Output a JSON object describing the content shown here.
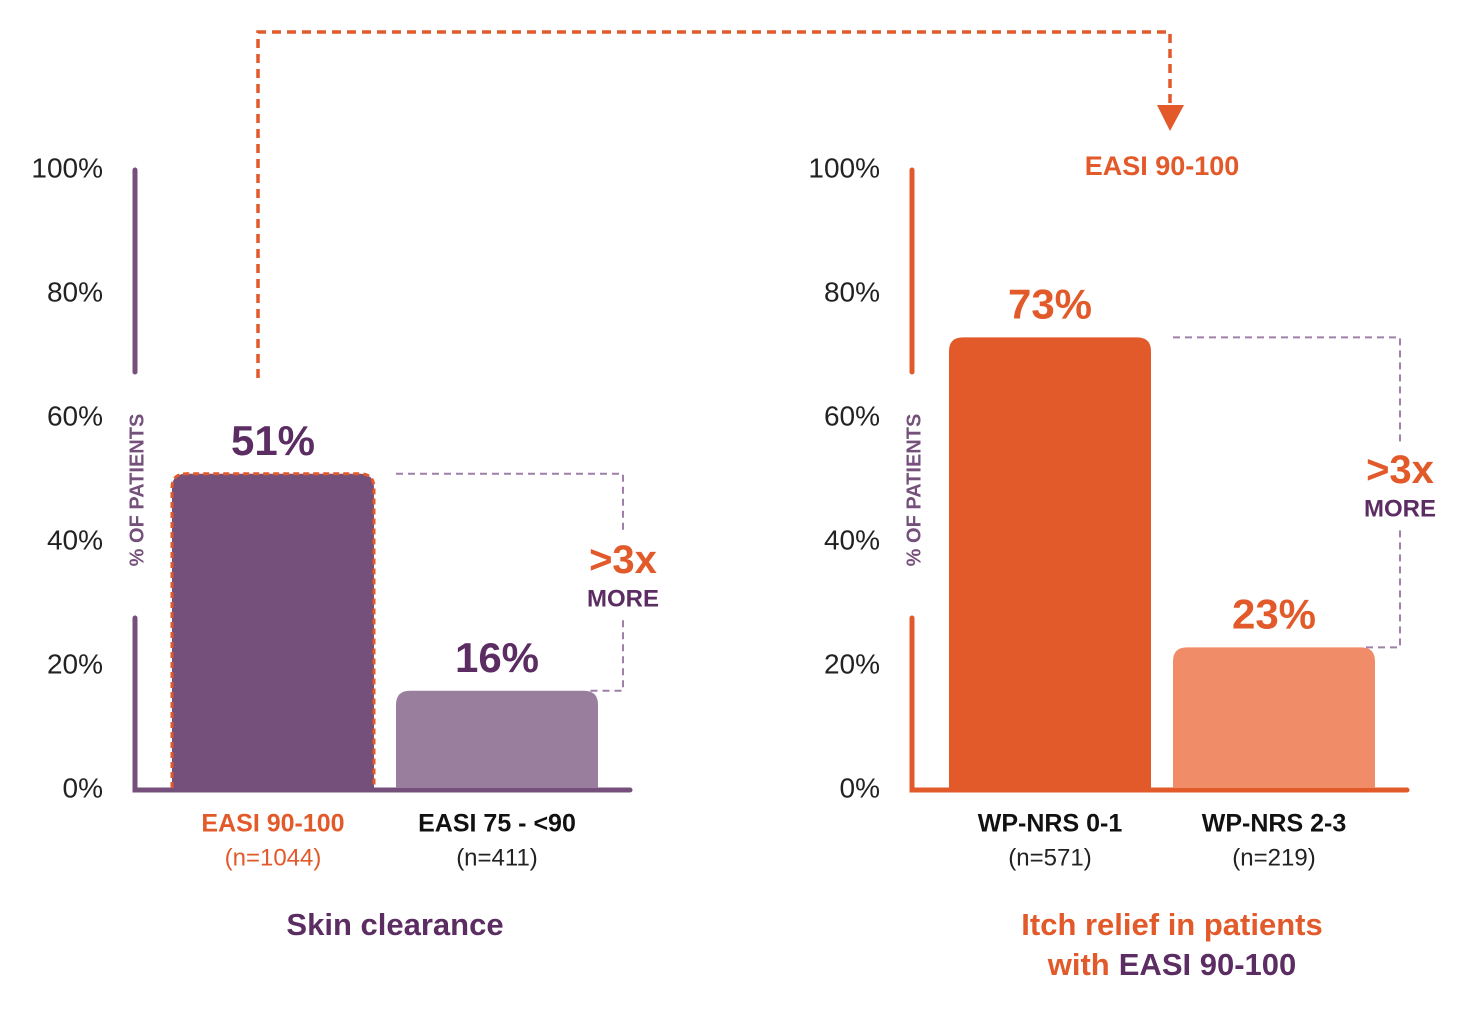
{
  "chart_data": [
    {
      "type": "bar",
      "title": [
        "Skin clearance"
      ],
      "title_colors": [
        "#5b2d62"
      ],
      "y_label": "% OF PATIENTS",
      "categories": [
        "EASI 90-100",
        "EASI 75 - <90"
      ],
      "category_notes": [
        "(n=1044)",
        "(n=411)"
      ],
      "category_colors": [
        "#e2592a",
        "#111111"
      ],
      "values": [
        51,
        16
      ],
      "value_labels": [
        "51%",
        "16%"
      ],
      "colors": [
        "#74507b",
        "#9a7e9e"
      ],
      "value_label_color": "#5b2d62",
      "highlight": [
        true,
        false
      ],
      "axis_color": "#74507b",
      "ylim": [
        0,
        100
      ],
      "yticks": [
        {
          "value": 0,
          "label": "0%"
        },
        {
          "value": 20,
          "label": "20%"
        },
        {
          "value": 40,
          "label": "40%"
        },
        {
          "value": 60,
          "label": "60%"
        },
        {
          "value": 80,
          "label": "80%"
        },
        {
          "value": 100,
          "label": "100%"
        }
      ],
      "annotation": [
        ">3x",
        "MORE"
      ]
    },
    {
      "type": "bar",
      "title": [
        "Itch relief in patients",
        "with",
        "EASI 90-100"
      ],
      "title_colors": [
        "#e2592a",
        "#e2592a",
        "#5b2d62"
      ],
      "header": "EASI 90-100",
      "y_label": "% OF PATIENTS",
      "categories": [
        "WP-NRS 0-1",
        "WP-NRS 2-3"
      ],
      "category_notes": [
        "(n=571)",
        "(n=219)"
      ],
      "category_colors": [
        "#111111",
        "#111111"
      ],
      "values": [
        73,
        23
      ],
      "value_labels": [
        "73%",
        "23%"
      ],
      "colors": [
        "#e2592a",
        "#f08c68"
      ],
      "value_label_color": "#e2592a",
      "highlight": [
        false,
        false
      ],
      "axis_color": "#e2592a",
      "ylim": [
        0,
        100
      ],
      "yticks": [
        {
          "value": 0,
          "label": "0%"
        },
        {
          "value": 20,
          "label": "20%"
        },
        {
          "value": 40,
          "label": "40%"
        },
        {
          "value": 60,
          "label": "60%"
        },
        {
          "value": 80,
          "label": "80%"
        },
        {
          "value": 100,
          "label": "100%"
        }
      ],
      "annotation": [
        ">3x",
        "MORE"
      ]
    }
  ]
}
